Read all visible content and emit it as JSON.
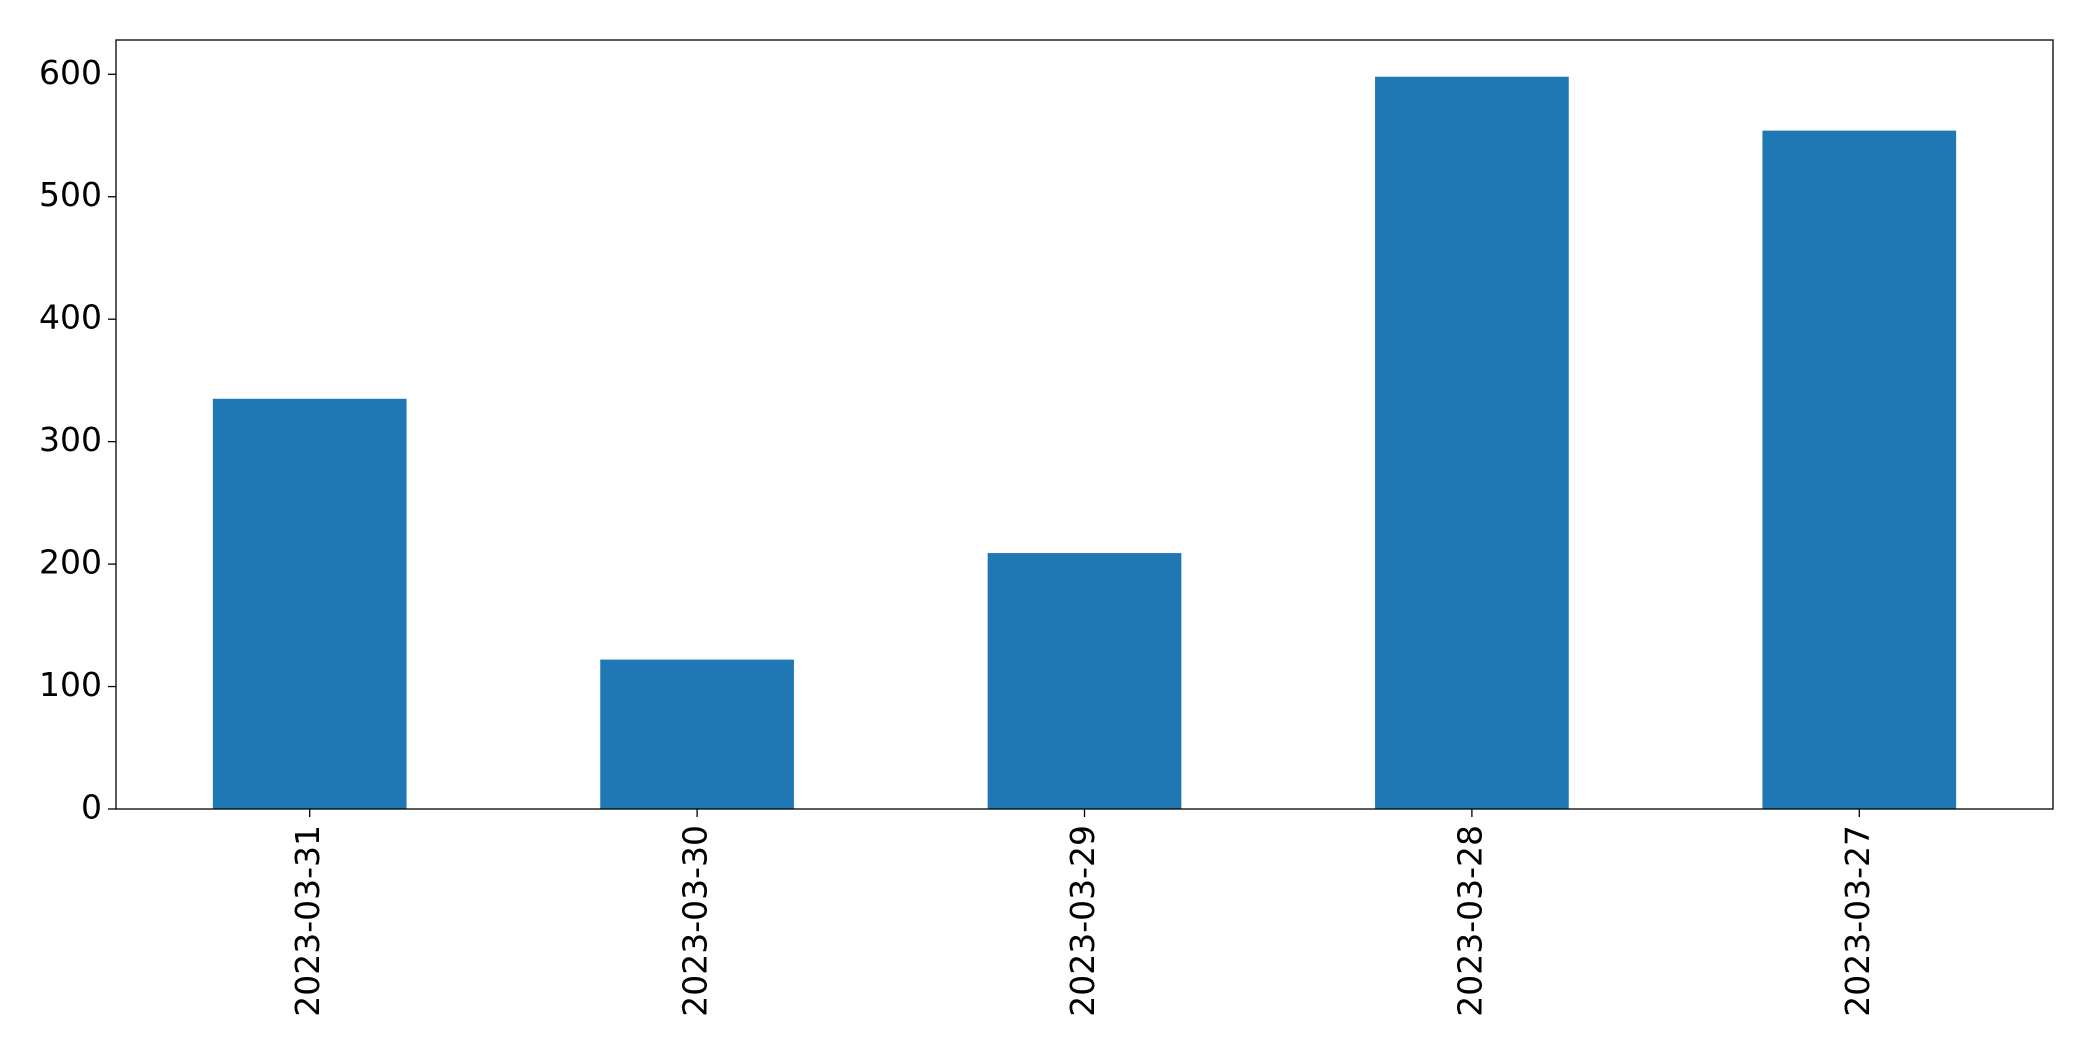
{
  "chart_data": {
    "type": "bar",
    "categories": [
      "2023-03-31",
      "2023-03-30",
      "2023-03-29",
      "2023-03-28",
      "2023-03-27"
    ],
    "values": [
      335,
      122,
      209,
      598,
      554
    ],
    "color": "#1f77b4",
    "ylim": [
      0,
      628
    ],
    "yticks": [
      0,
      100,
      200,
      300,
      400,
      500,
      600
    ],
    "grid": false
  }
}
